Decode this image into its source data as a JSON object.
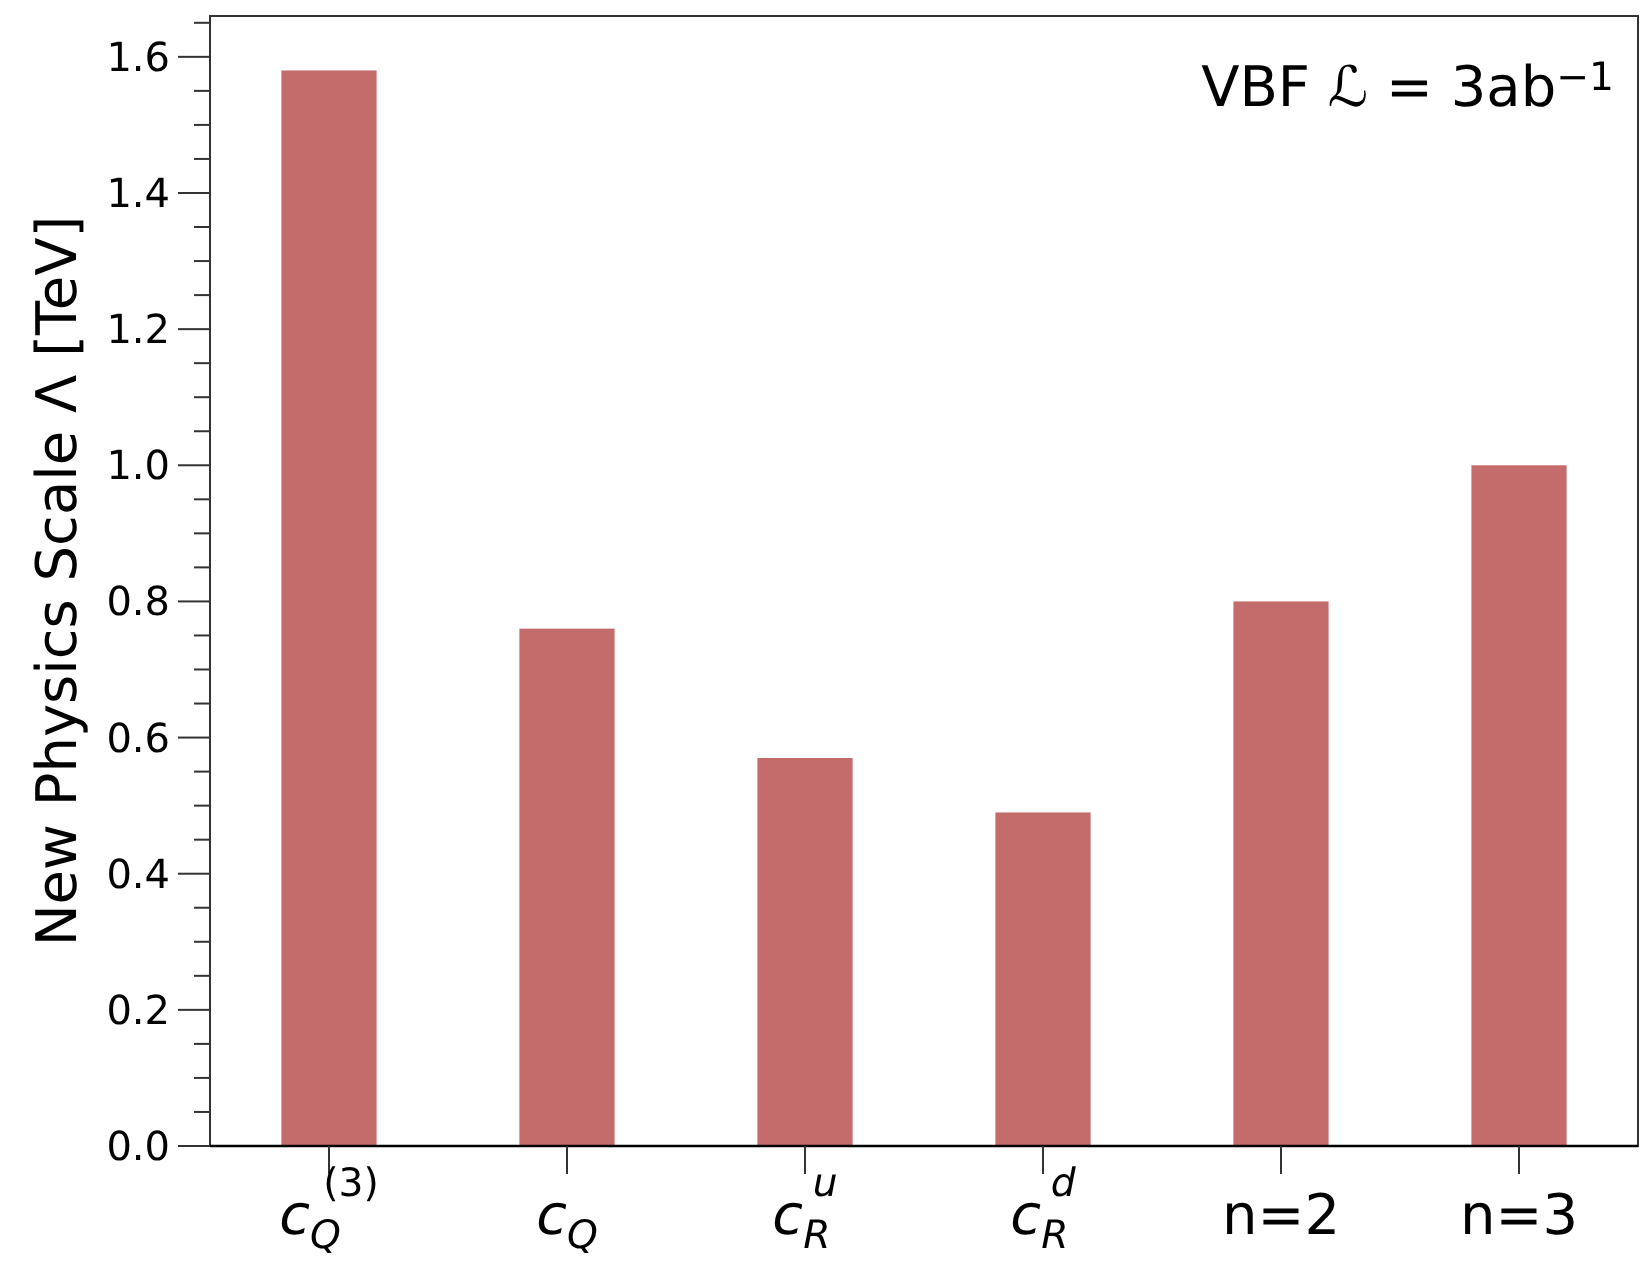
{
  "chart_data": {
    "type": "bar",
    "ylabel": "New Physics Scale Λ [TeV]",
    "annotations": [
      "VBF ℒ = 3ab$^{−1}$"
    ],
    "categories": [
      "c$_{Q}$$^{(3)}$",
      "c$_{Q}$",
      "c$_{R}$$^{u}$",
      "c$_{R}$$^{d}$",
      "n=2",
      "n=3"
    ],
    "values": [
      1.58,
      0.76,
      0.57,
      0.49,
      0.8,
      1.0
    ],
    "color": "#c46c6c",
    "ylim": [
      0,
      1.66
    ],
    "yticks": [
      {
        "value": 0,
        "label": "0.0"
      },
      {
        "value": 0.05,
        "label": null
      },
      {
        "value": 0.1,
        "label": null
      },
      {
        "value": 0.15,
        "label": null
      },
      0.2,
      {
        "value": 0.25,
        "label": null
      },
      {
        "value": 0.3,
        "label": null
      },
      {
        "value": 0.35,
        "label": null
      },
      0.4,
      {
        "value": 0.45,
        "label": null
      },
      {
        "value": 0.5,
        "label": null
      },
      {
        "value": 0.55,
        "label": null
      },
      0.6,
      {
        "value": 0.65,
        "label": null
      },
      {
        "value": 0.7,
        "label": null
      },
      {
        "value": 0.75,
        "label": null
      },
      0.8,
      {
        "value": 0.85,
        "label": null
      },
      {
        "value": 0.9,
        "label": null
      },
      {
        "value": 0.95,
        "label": null
      },
      {
        "value": 1.0,
        "label": "1.0"
      },
      {
        "value": 1.05,
        "label": null
      },
      {
        "value": 1.1,
        "label": null
      },
      {
        "value": 1.15,
        "label": null
      },
      1.2,
      {
        "value": 1.25,
        "label": null
      },
      {
        "value": 1.3,
        "label": null
      },
      {
        "value": 1.35,
        "label": null
      },
      1.4,
      {
        "value": 1.45,
        "label": null
      },
      {
        "value": 1.5,
        "label": null
      },
      {
        "value": 1.55,
        "label": null
      },
      1.6,
      {
        "value": 1.65,
        "label": null
      }
    ],
    "grid": false
  }
}
